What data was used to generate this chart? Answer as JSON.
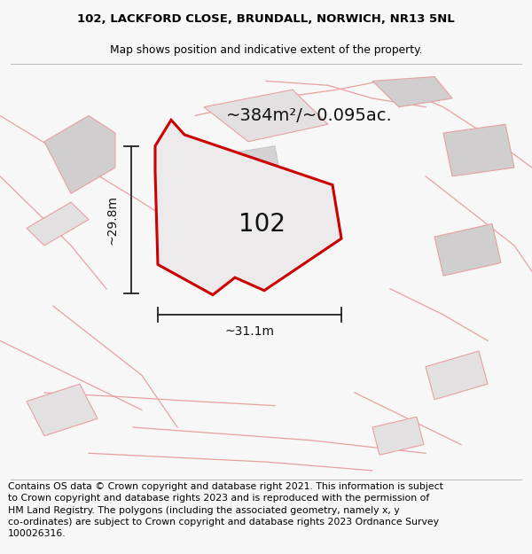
{
  "title_line1": "102, LACKFORD CLOSE, BRUNDALL, NORWICH, NR13 5NL",
  "title_line2": "Map shows position and indicative extent of the property.",
  "area_label": "~384m²/~0.095ac.",
  "number_label": "102",
  "dim_vertical": "~29.8m",
  "dim_horizontal": "~31.1m",
  "footer_text": "Contains OS data © Crown copyright and database right 2021. This information is subject to Crown copyright and database rights 2023 and is reproduced with the permission of HM Land Registry. The polygons (including the associated geometry, namely x, y co-ordinates) are subject to Crown copyright and database rights 2023 Ordnance Survey 100026316.",
  "background_color": "#f7f7f7",
  "map_background": "#f0efef",
  "red_color": "#cc0000",
  "pink_color": "#e8a0a0",
  "bldg_fill_light": "#e2e0e0",
  "bldg_fill_dark": "#d0cece",
  "plot_fill": "#eceaea",
  "title_fontsize": 9.5,
  "subtitle_fontsize": 8.8,
  "area_fontsize": 14,
  "number_fontsize": 20,
  "dim_fontsize": 10,
  "footer_fontsize": 7.8
}
